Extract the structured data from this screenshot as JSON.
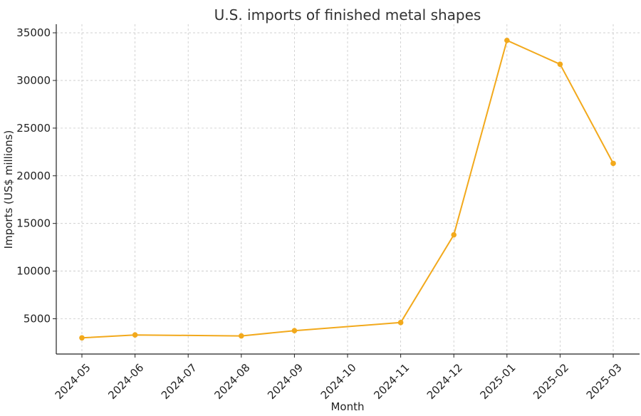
{
  "chart_data": {
    "type": "line",
    "title": "U.S. imports of finished metal shapes",
    "xlabel": "Month",
    "ylabel": "Imports (US$ millions)",
    "x_ticks": [
      "2024-05",
      "2024-06",
      "2024-07",
      "2024-08",
      "2024-09",
      "2024-10",
      "2024-11",
      "2024-12",
      "2025-01",
      "2025-02",
      "2025-03"
    ],
    "x_range": [
      "2024-05",
      "2025-03"
    ],
    "y_ticks": [
      5000,
      10000,
      15000,
      20000,
      25000,
      30000,
      35000
    ],
    "ylim": [
      1300,
      35900
    ],
    "grid": true,
    "series": [
      {
        "color": "#F2A91C",
        "points": [
          {
            "x": "2024-05",
            "y": 3000
          },
          {
            "x": "2024-06",
            "y": 3300
          },
          {
            "x": "2024-08",
            "y": 3200
          },
          {
            "x": "2024-09",
            "y": 3750
          },
          {
            "x": "2024-11",
            "y": 4600
          },
          {
            "x": "2024-12",
            "y": 13800
          },
          {
            "x": "2025-01",
            "y": 34200
          },
          {
            "x": "2025-02",
            "y": 31700
          },
          {
            "x": "2025-03",
            "y": 21300
          }
        ]
      }
    ]
  }
}
